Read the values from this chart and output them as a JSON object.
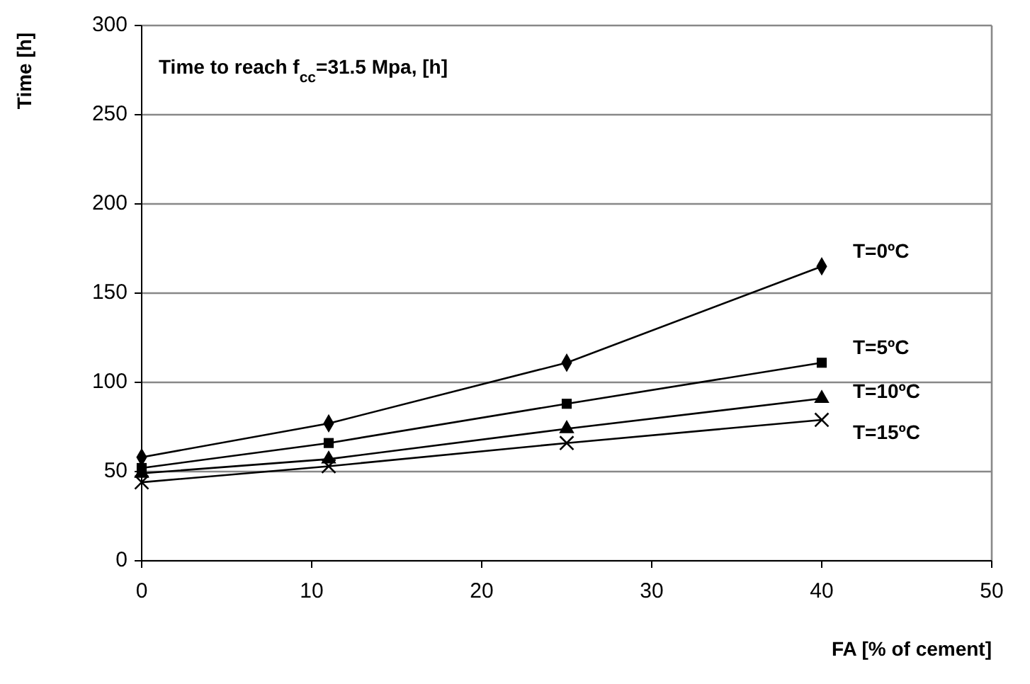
{
  "chart_data": {
    "type": "line",
    "title": "Time to reach f$_{cc}$=31.5 Mpa, [h]",
    "xlabel": "FA [% of cement]",
    "ylabel": "Time [h]",
    "x": [
      0,
      11,
      25,
      40
    ],
    "series": [
      {
        "name": "T=0ºC",
        "color": "#000000",
        "marker": "diamond",
        "values": [
          58,
          77,
          111,
          165
        ]
      },
      {
        "name": "T=5ºC",
        "color": "#000000",
        "marker": "square",
        "values": [
          52,
          66,
          88,
          111
        ]
      },
      {
        "name": "T=10ºC",
        "color": "#000000",
        "marker": "triangle",
        "values": [
          49,
          57,
          74,
          91
        ]
      },
      {
        "name": "T=15ºC",
        "color": "#000000",
        "marker": "cross",
        "values": [
          44,
          53,
          66,
          79
        ]
      }
    ],
    "xlim": [
      0,
      50
    ],
    "xticks": [
      0,
      10,
      20,
      30,
      40,
      50
    ],
    "ylim": [
      0,
      300
    ],
    "yticks": [
      0,
      50,
      100,
      150,
      200,
      250,
      300
    ],
    "grid": "y",
    "line_style": "solid"
  }
}
